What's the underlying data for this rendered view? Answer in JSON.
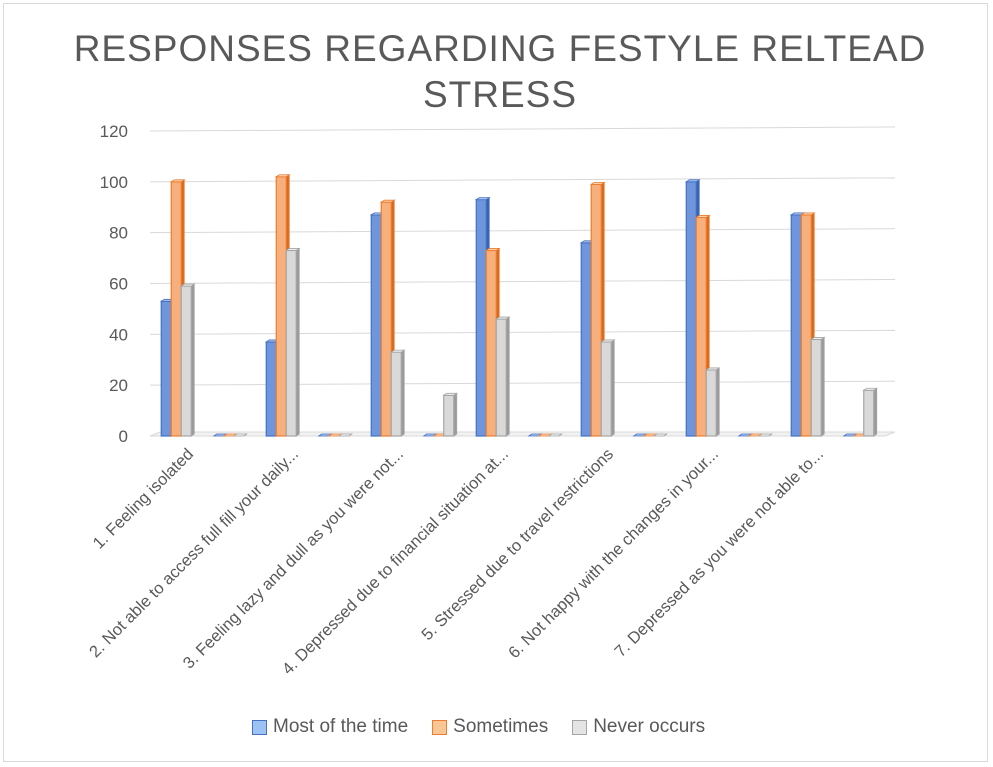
{
  "chart_data": {
    "type": "bar",
    "style": "3d-clustered-column",
    "title": "RESPONSES REGARDING FESTYLE RELTEAD STRESS",
    "ylim": [
      0,
      120
    ],
    "yticks": [
      0,
      20,
      40,
      60,
      80,
      100,
      120
    ],
    "grid": true,
    "legend_position": "bottom",
    "categories": [
      "1.     Feeling isolated",
      "",
      "2.     Not able to access full fill your daily...",
      "",
      "3.     Feeling lazy and dull as you were not...",
      "",
      "4.     Depressed due to financial situation at...",
      "",
      "5.     Stressed due to travel restrictions",
      "",
      "6.     Not happy with the changes in your...",
      "",
      "7.     Depressed as you were not able to...",
      ""
    ],
    "series": [
      {
        "name": "Most of the time",
        "color": "#4472c4",
        "values": [
          53,
          0,
          37,
          0,
          87,
          0,
          93,
          0,
          76,
          0,
          100,
          0,
          87,
          0
        ]
      },
      {
        "name": "Sometimes",
        "color": "#ed7d31",
        "values": [
          100,
          0,
          102,
          0,
          92,
          0,
          73,
          0,
          99,
          0,
          86,
          0,
          87,
          0
        ]
      },
      {
        "name": "Never occurs",
        "color": "#a5a5a5",
        "values": [
          59,
          0,
          73,
          0,
          33,
          16,
          46,
          0,
          37,
          0,
          26,
          0,
          38,
          18
        ]
      }
    ]
  }
}
